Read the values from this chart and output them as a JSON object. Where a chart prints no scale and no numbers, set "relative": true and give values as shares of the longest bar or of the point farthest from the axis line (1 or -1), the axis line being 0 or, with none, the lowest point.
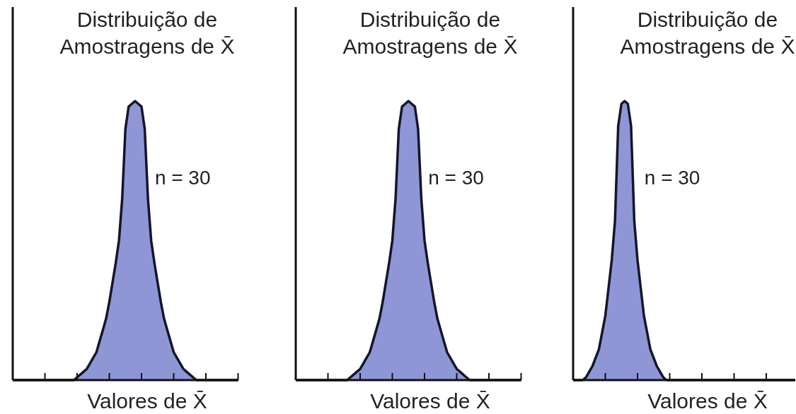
{
  "chart_data": [
    {
      "type": "area",
      "title": "Distribuição de Amostragens de X̄",
      "xlabel": "Valores de X̄",
      "relative": true,
      "annotations": [
        "n = 30"
      ],
      "categories": [
        null,
        null,
        null,
        null,
        null,
        null,
        null,
        null,
        null,
        null,
        null,
        null,
        null,
        null,
        null,
        null,
        null,
        null,
        null,
        null,
        null,
        null,
        null,
        null,
        null,
        null,
        null,
        null,
        null,
        null,
        null,
        null,
        null,
        null,
        null,
        null,
        null,
        null,
        null,
        null,
        null,
        null,
        null,
        null,
        null,
        null,
        null,
        null,
        null,
        null,
        null,
        null,
        null,
        null,
        null,
        null,
        null,
        null,
        null,
        null,
        null,
        null,
        null,
        null,
        null,
        null,
        null,
        null,
        null,
        null,
        null
      ],
      "series": [
        {
          "color": "#8e96d6",
          "values": [
            0,
            0,
            0,
            0,
            0,
            0,
            0,
            0,
            0,
            0,
            0,
            0,
            0,
            0,
            0,
            0,
            0,
            0,
            0,
            0,
            0.01,
            0.02,
            0.03,
            0.04,
            0.06,
            0.08,
            0.1,
            0.14,
            0.18,
            0.22,
            0.28,
            0.35,
            0.42,
            0.5,
            0.65,
            0.9,
            0.98,
            0.99,
            1,
            0.99,
            0.98,
            0.9,
            0.65,
            0.5,
            0.42,
            0.35,
            0.28,
            0.22,
            0.18,
            0.14,
            0.1,
            0.08,
            0.06,
            0.04,
            0.03,
            0.02,
            0.01,
            0,
            0,
            0,
            0,
            0,
            0,
            0,
            0,
            0,
            0,
            0,
            0,
            0,
            0
          ]
        }
      ]
    },
    {
      "type": "area",
      "title": "Distribuição de Amostragens de X̄",
      "xlabel": "Valores de X̄",
      "relative": true,
      "annotations": [
        "n = 30"
      ],
      "categories": [
        null,
        null,
        null,
        null,
        null,
        null,
        null,
        null,
        null,
        null,
        null,
        null,
        null,
        null,
        null,
        null,
        null,
        null,
        null,
        null,
        null,
        null,
        null,
        null,
        null,
        null,
        null,
        null,
        null,
        null,
        null,
        null,
        null,
        null,
        null,
        null,
        null,
        null,
        null,
        null,
        null,
        null,
        null,
        null,
        null,
        null,
        null,
        null,
        null,
        null,
        null,
        null,
        null,
        null,
        null,
        null,
        null,
        null,
        null,
        null,
        null,
        null,
        null,
        null,
        null,
        null,
        null,
        null,
        null,
        null,
        null
      ],
      "series": [
        {
          "color": "#8e96d6",
          "values": [
            0,
            0,
            0,
            0,
            0,
            0,
            0,
            0,
            0,
            0,
            0,
            0,
            0,
            0,
            0,
            0,
            0,
            0.01,
            0.02,
            0.03,
            0.04,
            0.06,
            0.08,
            0.1,
            0.14,
            0.18,
            0.22,
            0.28,
            0.35,
            0.42,
            0.5,
            0.65,
            0.9,
            0.98,
            0.99,
            1,
            0.99,
            0.98,
            0.9,
            0.65,
            0.5,
            0.42,
            0.35,
            0.28,
            0.22,
            0.18,
            0.14,
            0.1,
            0.08,
            0.06,
            0.04,
            0.03,
            0.02,
            0.01,
            0,
            0,
            0,
            0,
            0,
            0,
            0,
            0,
            0,
            0,
            0,
            0,
            0,
            0,
            0,
            0,
            0
          ]
        }
      ]
    },
    {
      "type": "area",
      "title": "Distribuição de Amostragens de X̄",
      "xlabel": "Valores de X̄",
      "relative": true,
      "annotations": [
        "n = 30"
      ],
      "categories": [
        null,
        null,
        null,
        null,
        null,
        null,
        null,
        null,
        null,
        null,
        null,
        null,
        null,
        null,
        null,
        null,
        null,
        null,
        null,
        null,
        null,
        null,
        null,
        null,
        null,
        null,
        null,
        null,
        null,
        null,
        null,
        null,
        null,
        null,
        null,
        null,
        null,
        null,
        null,
        null,
        null,
        null,
        null,
        null,
        null,
        null,
        null,
        null,
        null,
        null,
        null,
        null,
        null,
        null,
        null,
        null,
        null,
        null,
        null,
        null,
        null,
        null,
        null,
        null,
        null,
        null,
        null,
        null,
        null,
        null
      ],
      "series": [
        {
          "color": "#8e96d6",
          "values": [
            0,
            0,
            0,
            0,
            0.01,
            0.03,
            0.05,
            0.08,
            0.11,
            0.17,
            0.23,
            0.33,
            0.43,
            0.57,
            0.91,
            0.99,
            1,
            0.99,
            0.91,
            0.57,
            0.43,
            0.33,
            0.23,
            0.17,
            0.11,
            0.08,
            0.05,
            0.03,
            0.01,
            0,
            0,
            0,
            0,
            0,
            0,
            0,
            0,
            0,
            0,
            0,
            0,
            0,
            0,
            0,
            0,
            0,
            0,
            0,
            0,
            0,
            0,
            0,
            0,
            0,
            0,
            0,
            0,
            0,
            0,
            0,
            0,
            0,
            0,
            0,
            0,
            0,
            0,
            0,
            0,
            0
          ]
        }
      ]
    }
  ]
}
